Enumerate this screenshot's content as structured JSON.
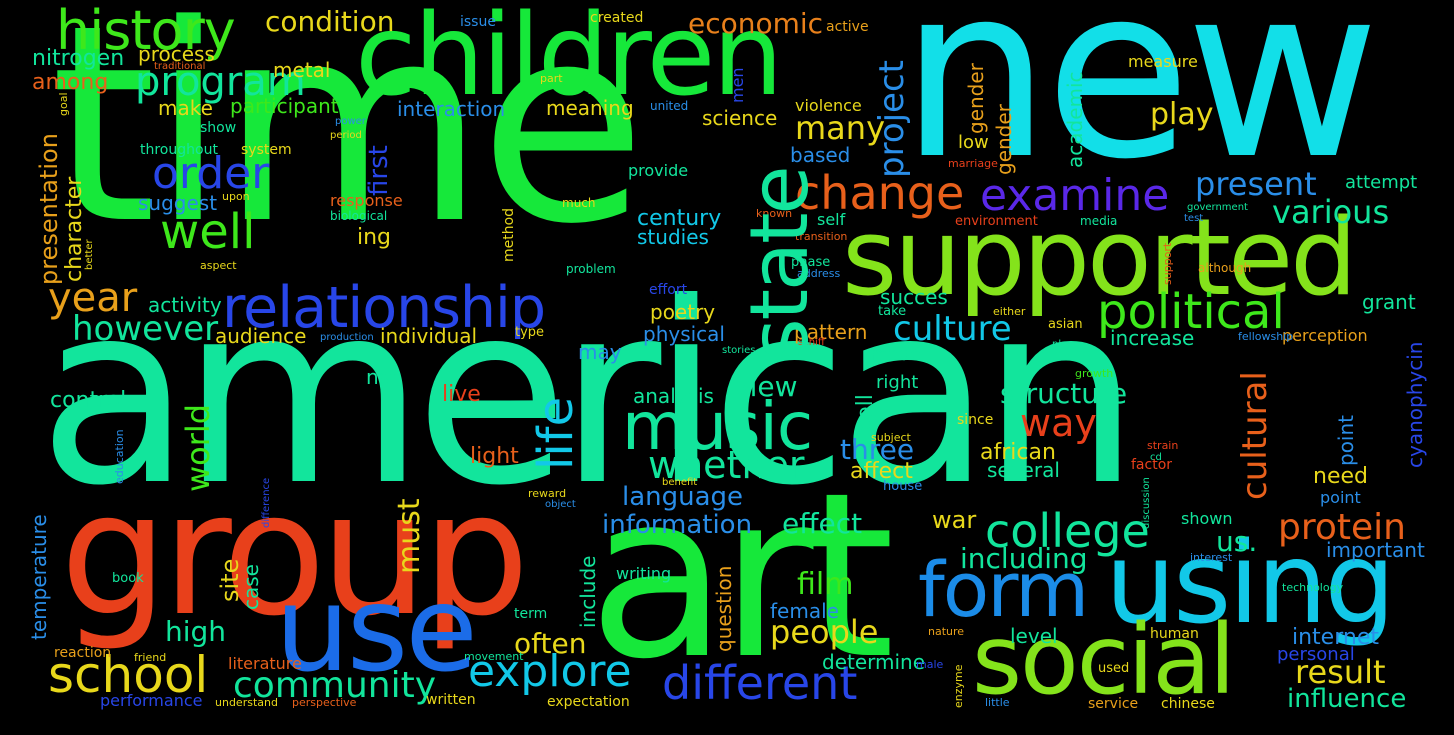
{
  "words": [
    {
      "text": "time",
      "color": "#16e83a"
    },
    {
      "text": "american",
      "color": "#12e59c"
    },
    {
      "text": "new",
      "color": "#12dfe8"
    },
    {
      "text": "art",
      "color": "#16e83a"
    },
    {
      "text": "group",
      "color": "#e8401b"
    },
    {
      "text": "children",
      "color": "#16e83a"
    },
    {
      "text": "supported",
      "color": "#84e31b"
    },
    {
      "text": "using",
      "color": "#12c8e8"
    },
    {
      "text": "social",
      "color": "#84e31b"
    },
    {
      "text": "use",
      "color": "#1b6ce8"
    },
    {
      "text": "form",
      "color": "#1b8ce8"
    },
    {
      "text": "state",
      "color": "#12e59c"
    },
    {
      "text": "relationship",
      "color": "#2846e8"
    },
    {
      "text": "music",
      "color": "#12e59c"
    },
    {
      "text": "school",
      "color": "#e8d81b"
    },
    {
      "text": "different",
      "color": "#2846e8"
    },
    {
      "text": "history",
      "color": "#3ee81b"
    },
    {
      "text": "program",
      "color": "#12e59c"
    },
    {
      "text": "political",
      "color": "#3ee81b"
    },
    {
      "text": "examine",
      "color": "#5a28e8"
    },
    {
      "text": "change",
      "color": "#e8601b"
    },
    {
      "text": "college",
      "color": "#12e59c"
    },
    {
      "text": "explore",
      "color": "#12c8e8"
    },
    {
      "text": "community",
      "color": "#12e59c"
    },
    {
      "text": "order",
      "color": "#2846e8"
    },
    {
      "text": "well",
      "color": "#3ee81b"
    },
    {
      "text": "year",
      "color": "#e8a01b"
    },
    {
      "text": "protein",
      "color": "#e8601b"
    },
    {
      "text": "whether",
      "color": "#12e59c"
    },
    {
      "text": "life",
      "color": "#12c8e8"
    },
    {
      "text": "culture",
      "color": "#12c8e8"
    },
    {
      "text": "however",
      "color": "#12e59c"
    },
    {
      "text": "project",
      "color": "#2a8ee8"
    },
    {
      "text": "present",
      "color": "#2a8ee8"
    },
    {
      "text": "various",
      "color": "#12e59c"
    },
    {
      "text": "many",
      "color": "#e8d81b"
    },
    {
      "text": "way",
      "color": "#e8401b"
    },
    {
      "text": "people",
      "color": "#e8d81b"
    },
    {
      "text": "result",
      "color": "#e8d81b"
    },
    {
      "text": "influence",
      "color": "#12e59c"
    },
    {
      "text": "cultural",
      "color": "#e8601b"
    },
    {
      "text": "structure",
      "color": "#12e59c"
    },
    {
      "text": "condition",
      "color": "#e8d81b"
    },
    {
      "text": "economic",
      "color": "#e8801b"
    },
    {
      "text": "play",
      "color": "#e8d81b"
    },
    {
      "text": "including",
      "color": "#12e59c"
    },
    {
      "text": "information",
      "color": "#2a8ee8"
    },
    {
      "text": "effect",
      "color": "#12e59c"
    },
    {
      "text": "film",
      "color": "#3ee81b"
    },
    {
      "text": "language",
      "color": "#2a8ee8"
    },
    {
      "text": "world",
      "color": "#3ee81b"
    },
    {
      "text": "must",
      "color": "#e8d81b"
    },
    {
      "text": "high",
      "color": "#12e59c"
    },
    {
      "text": "often",
      "color": "#e8d81b"
    },
    {
      "text": "three",
      "color": "#2a8ee8"
    },
    {
      "text": "view",
      "color": "#12e59c"
    },
    {
      "text": "nitrogen",
      "color": "#12e59c"
    },
    {
      "text": "metal",
      "color": "#e8d81b"
    },
    {
      "text": "process",
      "color": "#e8d81b"
    },
    {
      "text": "among",
      "color": "#e8601b"
    },
    {
      "text": "participant",
      "color": "#3ee81b"
    },
    {
      "text": "make",
      "color": "#e8d81b"
    },
    {
      "text": "interaction",
      "color": "#2a8ee8"
    },
    {
      "text": "meaning",
      "color": "#e8d81b"
    },
    {
      "text": "science",
      "color": "#e8d81b"
    },
    {
      "text": "based",
      "color": "#2a8ee8"
    },
    {
      "text": "century",
      "color": "#12c8e8"
    },
    {
      "text": "studies",
      "color": "#12c8e8"
    },
    {
      "text": "first",
      "color": "#2846e8"
    },
    {
      "text": "presentation",
      "color": "#e8a01b"
    },
    {
      "text": "character",
      "color": "#e8d81b"
    },
    {
      "text": "suggest",
      "color": "#2a8ee8"
    },
    {
      "text": "response",
      "color": "#e8601b"
    },
    {
      "text": "ing",
      "color": "#e8d81b"
    },
    {
      "text": "activity",
      "color": "#12e59c"
    },
    {
      "text": "audience",
      "color": "#e8d81b"
    },
    {
      "text": "individual",
      "color": "#e8d81b"
    },
    {
      "text": "poetry",
      "color": "#e8d81b"
    },
    {
      "text": "physical",
      "color": "#2a8ee8"
    },
    {
      "text": "pattern",
      "color": "#e8a01b"
    },
    {
      "text": "made",
      "color": "#12e59c"
    },
    {
      "text": "cell",
      "color": "#12e59c"
    },
    {
      "text": "right",
      "color": "#12e59c"
    },
    {
      "text": "succes",
      "color": "#12e59c"
    },
    {
      "text": "nsf",
      "color": "#12e59c"
    },
    {
      "text": "live",
      "color": "#e8401b"
    },
    {
      "text": "control",
      "color": "#12e59c"
    },
    {
      "text": "analysis",
      "color": "#12e59c"
    },
    {
      "text": "light",
      "color": "#e8601b"
    },
    {
      "text": "may",
      "color": "#2a8ee8"
    },
    {
      "text": "affect",
      "color": "#e8d81b"
    },
    {
      "text": "african",
      "color": "#e8d81b"
    },
    {
      "text": "several",
      "color": "#12e59c"
    },
    {
      "text": "war",
      "color": "#e8d81b"
    },
    {
      "text": "us.",
      "color": "#12e59c"
    },
    {
      "text": "site",
      "color": "#e8d81b"
    },
    {
      "text": "case",
      "color": "#12e59c"
    },
    {
      "text": "temperature",
      "color": "#2a8ee8"
    },
    {
      "text": "include",
      "color": "#12e59c"
    },
    {
      "text": "question",
      "color": "#e8a01b"
    },
    {
      "text": "within",
      "color": "#e8a01b"
    },
    {
      "text": "female",
      "color": "#2a8ee8"
    },
    {
      "text": "determine",
      "color": "#12e59c"
    },
    {
      "text": "level",
      "color": "#12e59c"
    },
    {
      "text": "internet",
      "color": "#2a8ee8"
    },
    {
      "text": "personal",
      "color": "#2846e8"
    },
    {
      "text": "important",
      "color": "#2a8ee8"
    },
    {
      "text": "shown",
      "color": "#12e59c"
    },
    {
      "text": "need",
      "color": "#e8d81b"
    },
    {
      "text": "point",
      "color": "#2a8ee8"
    },
    {
      "text": "cyanophycin",
      "color": "#2846e8"
    },
    {
      "text": "perception",
      "color": "#e8a01b"
    },
    {
      "text": "increase",
      "color": "#12e59c"
    },
    {
      "text": "grant",
      "color": "#12e59c"
    },
    {
      "text": "attempt",
      "color": "#12e59c"
    },
    {
      "text": "characteristic",
      "color": "#e8d81b"
    },
    {
      "text": "academic",
      "color": "#12e59c"
    },
    {
      "text": "gender",
      "color": "#e8a01b"
    },
    {
      "text": "low",
      "color": "#e8d81b"
    },
    {
      "text": "measure",
      "color": "#e8d81b"
    },
    {
      "text": "violence",
      "color": "#e8d81b"
    },
    {
      "text": "men",
      "color": "#2846e8"
    },
    {
      "text": "provide",
      "color": "#12e59c"
    },
    {
      "text": "self",
      "color": "#12e59c"
    },
    {
      "text": "issue",
      "color": "#2a8ee8"
    },
    {
      "text": "created",
      "color": "#e8d81b"
    },
    {
      "text": "active",
      "color": "#e8a01b"
    },
    {
      "text": "part",
      "color": "#e8d81b"
    },
    {
      "text": "traditional",
      "color": "#e8601b"
    },
    {
      "text": "united",
      "color": "#2a8ee8"
    },
    {
      "text": "show",
      "color": "#12e59c"
    },
    {
      "text": "throughout",
      "color": "#12e59c"
    },
    {
      "text": "system",
      "color": "#e8d81b"
    },
    {
      "text": "goal",
      "color": "#e8d81b"
    },
    {
      "text": "power",
      "color": "#2a8ee8"
    },
    {
      "text": "period",
      "color": "#e8d81b"
    },
    {
      "text": "upon",
      "color": "#e8d81b"
    },
    {
      "text": "much",
      "color": "#e8d81b"
    },
    {
      "text": "biological",
      "color": "#12e59c"
    },
    {
      "text": "method",
      "color": "#e8d81b"
    },
    {
      "text": "known",
      "color": "#e8601b"
    },
    {
      "text": "found",
      "color": "#2a8ee8"
    },
    {
      "text": "transition",
      "color": "#e8601b"
    },
    {
      "text": "environment",
      "color": "#e8401b"
    },
    {
      "text": "media",
      "color": "#12e59c"
    },
    {
      "text": "government",
      "color": "#12e59c"
    },
    {
      "text": "test",
      "color": "#2a8ee8"
    },
    {
      "text": "marriage",
      "color": "#e8401b"
    },
    {
      "text": "better",
      "color": "#e8d81b"
    },
    {
      "text": "aspect",
      "color": "#e8d81b"
    },
    {
      "text": "problem",
      "color": "#12e59c"
    },
    {
      "text": "phase",
      "color": "#12e59c"
    },
    {
      "text": "address",
      "color": "#2a8ee8"
    },
    {
      "text": "support",
      "color": "#e8601b"
    },
    {
      "text": "although",
      "color": "#e8a01b"
    },
    {
      "text": "effort",
      "color": "#2846e8"
    },
    {
      "text": "either",
      "color": "#e8d81b"
    },
    {
      "text": "take",
      "color": "#12e59c"
    },
    {
      "text": "asian",
      "color": "#e8d81b"
    },
    {
      "text": "fellowship",
      "color": "#2a8ee8"
    },
    {
      "text": "type",
      "color": "#e8d81b"
    },
    {
      "text": "production",
      "color": "#2a8ee8"
    },
    {
      "text": "schiff",
      "color": "#e8401b"
    },
    {
      "text": "stories",
      "color": "#12e59c"
    },
    {
      "text": "place",
      "color": "#12e59c"
    },
    {
      "text": "growth",
      "color": "#3ee81b"
    },
    {
      "text": "since",
      "color": "#e8d81b"
    },
    {
      "text": "subject",
      "color": "#e8d81b"
    },
    {
      "text": "strain",
      "color": "#e8401b"
    },
    {
      "text": "cd",
      "color": "#12e59c"
    },
    {
      "text": "factor",
      "color": "#e8401b"
    },
    {
      "text": "education",
      "color": "#2a8ee8"
    },
    {
      "text": "difference",
      "color": "#2846e8"
    },
    {
      "text": "benefit",
      "color": "#e8d81b"
    },
    {
      "text": "reward",
      "color": "#e8d81b"
    },
    {
      "text": "object",
      "color": "#2a8ee8"
    },
    {
      "text": "house",
      "color": "#2a8ee8"
    },
    {
      "text": "discussion",
      "color": "#12e59c"
    },
    {
      "text": "interest",
      "color": "#2a8ee8"
    },
    {
      "text": "book",
      "color": "#12e59c"
    },
    {
      "text": "writing",
      "color": "#12e59c"
    },
    {
      "text": "term",
      "color": "#12e59c"
    },
    {
      "text": "technology",
      "color": "#12e59c"
    },
    {
      "text": "nature",
      "color": "#e8a01b"
    },
    {
      "text": "human",
      "color": "#e8d81b"
    },
    {
      "text": "reaction",
      "color": "#e8a01b"
    },
    {
      "text": "friend",
      "color": "#e8d81b"
    },
    {
      "text": "movement",
      "color": "#12e59c"
    },
    {
      "text": "male",
      "color": "#2846e8"
    },
    {
      "text": "enzyme",
      "color": "#e8d81b"
    },
    {
      "text": "used",
      "color": "#e8d81b"
    },
    {
      "text": "literature",
      "color": "#e8601b"
    },
    {
      "text": "performance",
      "color": "#2846e8"
    },
    {
      "text": "understand",
      "color": "#e8d81b"
    },
    {
      "text": "perspective",
      "color": "#e8601b"
    },
    {
      "text": "written",
      "color": "#e8d81b"
    },
    {
      "text": "expectation",
      "color": "#e8d81b"
    },
    {
      "text": "little",
      "color": "#2a8ee8"
    },
    {
      "text": "service",
      "color": "#e8a01b"
    },
    {
      "text": "chinese",
      "color": "#e8d81b"
    }
  ]
}
